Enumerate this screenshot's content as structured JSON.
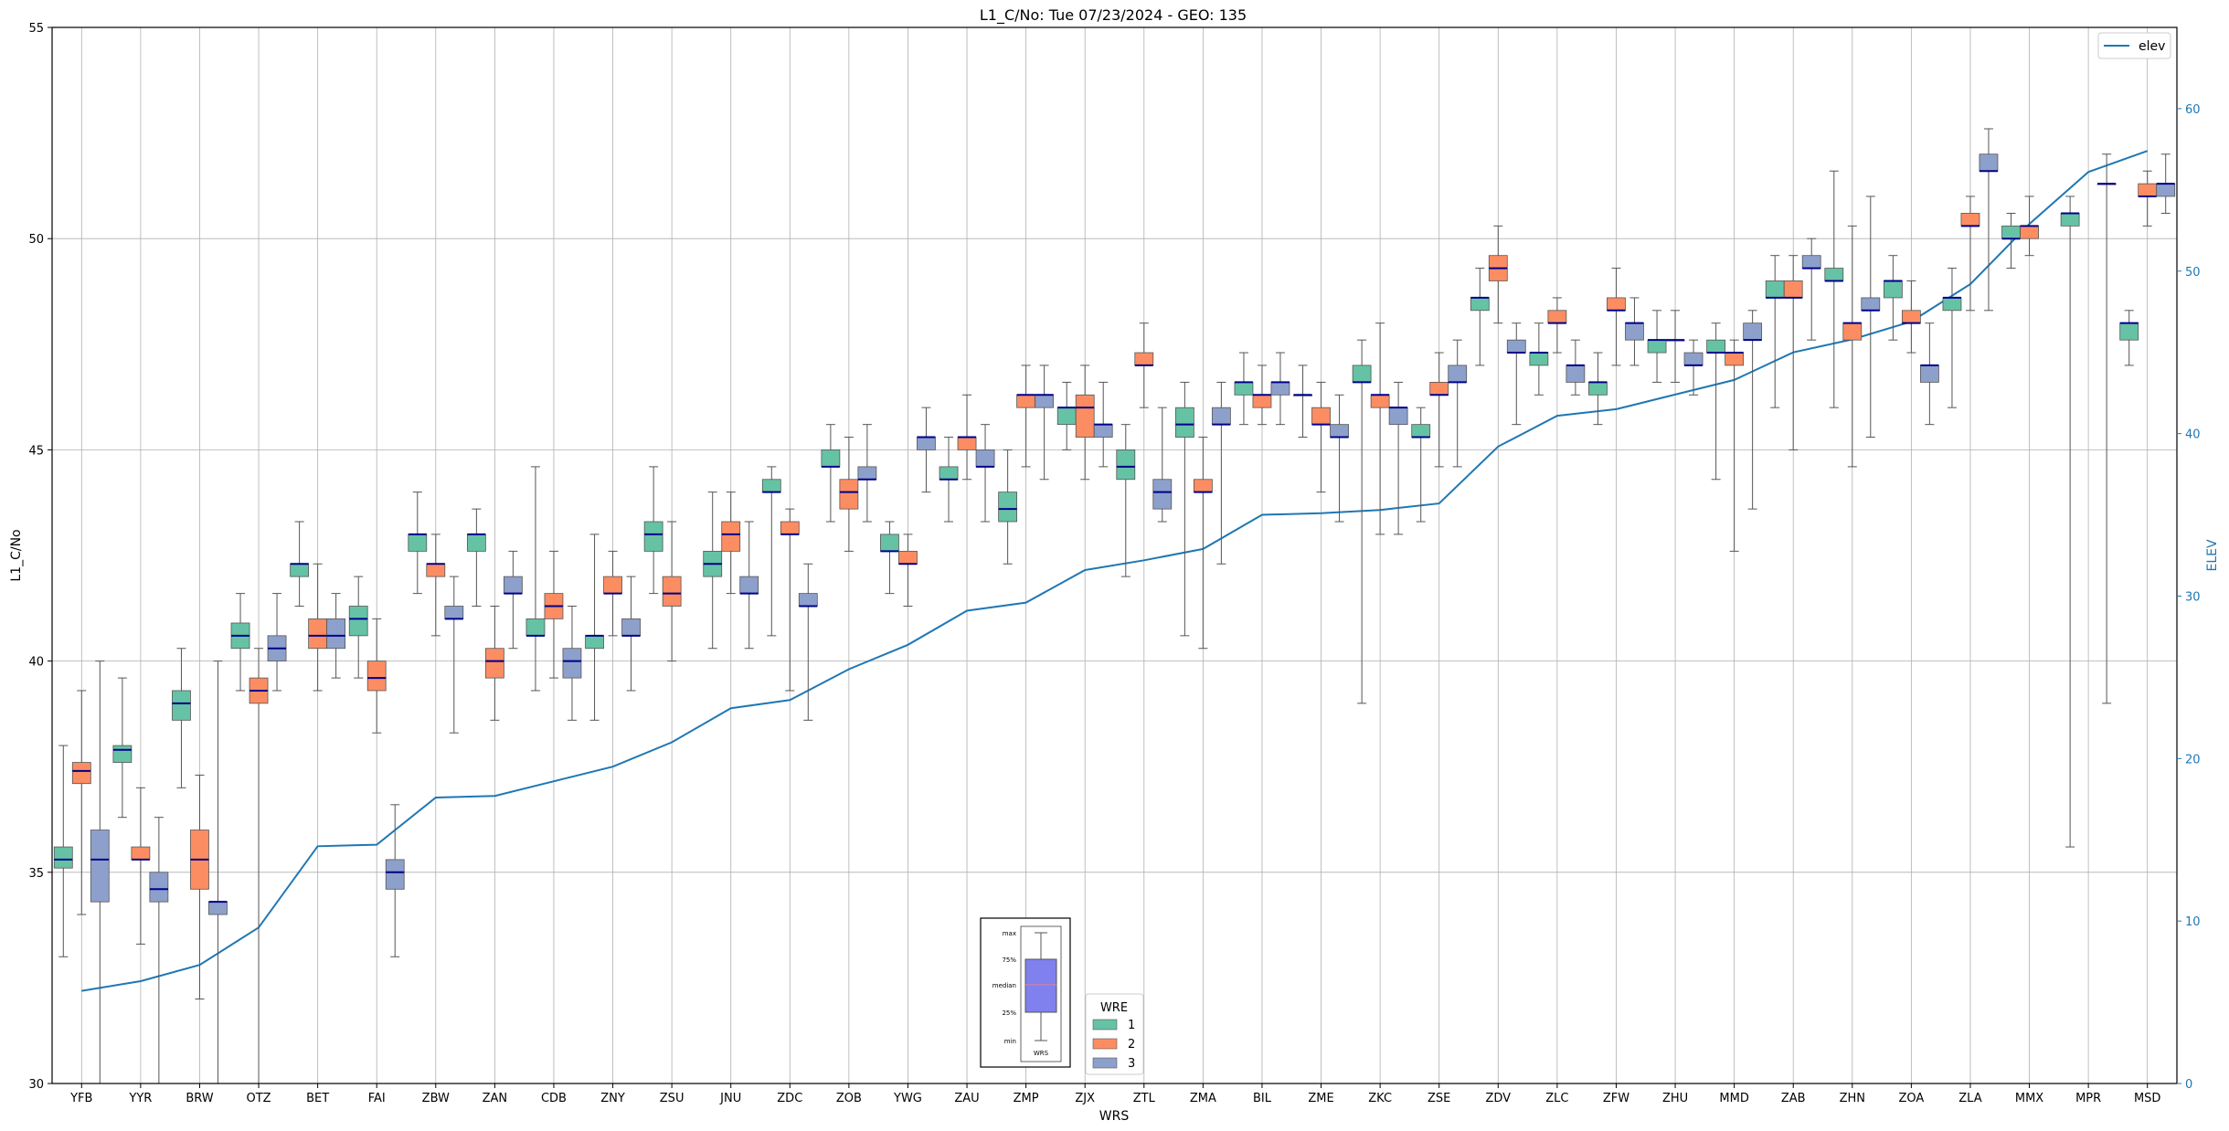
{
  "chart_data": {
    "type": "box",
    "title": "L1_C/No: Tue 07/23/2024 - GEO: 135",
    "xlabel": "WRS",
    "ylabel": "L1_C/No",
    "y2label": "ELEV",
    "ylim": [
      30,
      55
    ],
    "y2lim": [
      0,
      65
    ],
    "yticks": [
      30,
      35,
      40,
      45,
      50,
      55
    ],
    "y2ticks": [
      0,
      10,
      20,
      30,
      40,
      50,
      60
    ],
    "grid": true,
    "categories": [
      "YFB",
      "YYR",
      "BRW",
      "OTZ",
      "BET",
      "FAI",
      "ZBW",
      "ZAN",
      "CDB",
      "ZNY",
      "ZSU",
      "JNU",
      "ZDC",
      "ZOB",
      "YWG",
      "ZAU",
      "ZMP",
      "ZJX",
      "ZTL",
      "ZMA",
      "BIL",
      "ZME",
      "ZKC",
      "ZSE",
      "ZDV",
      "ZLC",
      "ZFW",
      "ZHU",
      "MMD",
      "ZAB",
      "ZHN",
      "ZOA",
      "ZLA",
      "MMX",
      "MPR",
      "MSD"
    ],
    "wre_colors": {
      "1": "#66c2a5",
      "2": "#fc8d62",
      "3": "#8da0cb"
    },
    "median_color": "#00008b",
    "legend": {
      "title": "WRE",
      "entries": [
        "1",
        "2",
        "3"
      ],
      "placement": "bottom-center"
    },
    "elev_legend": {
      "label": "elev",
      "placement": "top-right"
    },
    "elev_color": "#1f77b4",
    "key_labels": {
      "max": "max",
      "q3": "75%",
      "median": "median",
      "q1": "25%",
      "min": "min",
      "xlabel": "WRS"
    },
    "elev": [
      5.7,
      6.3,
      7.3,
      9.6,
      14.6,
      14.7,
      17.6,
      17.7,
      18.6,
      19.5,
      21.0,
      23.1,
      23.6,
      25.5,
      27.0,
      29.1,
      29.6,
      31.6,
      32.2,
      32.9,
      35.0,
      35.1,
      35.3,
      35.7,
      39.2,
      41.1,
      41.5,
      42.4,
      43.3,
      45.0,
      45.8,
      46.9,
      49.2,
      52.9,
      56.1,
      57.4
    ],
    "boxes": [
      {
        "site": "YFB",
        "wre": 1,
        "min": 33.0,
        "q1": 35.1,
        "median": 35.3,
        "q3": 35.6,
        "max": 38.0
      },
      {
        "site": "YFB",
        "wre": 2,
        "min": 34.0,
        "q1": 37.1,
        "median": 37.4,
        "q3": 37.6,
        "max": 39.3
      },
      {
        "site": "YFB",
        "wre": 3,
        "min": 30.0,
        "q1": 34.3,
        "median": 35.3,
        "q3": 36.0,
        "max": 40.0
      },
      {
        "site": "YYR",
        "wre": 1,
        "min": 36.3,
        "q1": 37.6,
        "median": 37.9,
        "q3": 38.0,
        "max": 39.6
      },
      {
        "site": "YYR",
        "wre": 2,
        "min": 33.3,
        "q1": 35.3,
        "median": 35.3,
        "q3": 35.6,
        "max": 37.0
      },
      {
        "site": "YYR",
        "wre": 3,
        "min": 30.0,
        "q1": 34.3,
        "median": 34.6,
        "q3": 35.0,
        "max": 36.3
      },
      {
        "site": "BRW",
        "wre": 1,
        "min": 37.0,
        "q1": 38.6,
        "median": 39.0,
        "q3": 39.3,
        "max": 40.3
      },
      {
        "site": "BRW",
        "wre": 2,
        "min": 32.0,
        "q1": 34.6,
        "median": 35.3,
        "q3": 36.0,
        "max": 37.3
      },
      {
        "site": "BRW",
        "wre": 3,
        "min": 30.0,
        "q1": 34.0,
        "median": 34.3,
        "q3": 34.3,
        "max": 40.0
      },
      {
        "site": "OTZ",
        "wre": 1,
        "min": 39.3,
        "q1": 40.3,
        "median": 40.6,
        "q3": 40.9,
        "max": 41.6
      },
      {
        "site": "OTZ",
        "wre": 2,
        "min": 30.0,
        "q1": 39.0,
        "median": 39.3,
        "q3": 39.6,
        "max": 40.3
      },
      {
        "site": "OTZ",
        "wre": 3,
        "min": 39.3,
        "q1": 40.0,
        "median": 40.3,
        "q3": 40.6,
        "max": 41.6
      },
      {
        "site": "BET",
        "wre": 1,
        "min": 41.3,
        "q1": 42.0,
        "median": 42.3,
        "q3": 42.3,
        "max": 43.3
      },
      {
        "site": "BET",
        "wre": 2,
        "min": 39.3,
        "q1": 40.3,
        "median": 40.6,
        "q3": 41.0,
        "max": 42.3
      },
      {
        "site": "BET",
        "wre": 3,
        "min": 39.6,
        "q1": 40.3,
        "median": 40.6,
        "q3": 41.0,
        "max": 41.6
      },
      {
        "site": "FAI",
        "wre": 1,
        "min": 39.6,
        "q1": 40.6,
        "median": 41.0,
        "q3": 41.3,
        "max": 42.0
      },
      {
        "site": "FAI",
        "wre": 2,
        "min": 38.3,
        "q1": 39.3,
        "median": 39.6,
        "q3": 40.0,
        "max": 41.0
      },
      {
        "site": "FAI",
        "wre": 3,
        "min": 33.0,
        "q1": 34.6,
        "median": 35.0,
        "q3": 35.3,
        "max": 36.6
      },
      {
        "site": "ZBW",
        "wre": 1,
        "min": 41.6,
        "q1": 42.6,
        "median": 43.0,
        "q3": 43.0,
        "max": 44.0
      },
      {
        "site": "ZBW",
        "wre": 2,
        "min": 40.6,
        "q1": 42.0,
        "median": 42.3,
        "q3": 42.3,
        "max": 43.0
      },
      {
        "site": "ZBW",
        "wre": 3,
        "min": 38.3,
        "q1": 41.0,
        "median": 41.0,
        "q3": 41.3,
        "max": 42.0
      },
      {
        "site": "ZAN",
        "wre": 1,
        "min": 41.3,
        "q1": 42.6,
        "median": 43.0,
        "q3": 43.0,
        "max": 43.6
      },
      {
        "site": "ZAN",
        "wre": 2,
        "min": 38.6,
        "q1": 39.6,
        "median": 40.0,
        "q3": 40.3,
        "max": 41.3
      },
      {
        "site": "ZAN",
        "wre": 3,
        "min": 40.3,
        "q1": 41.6,
        "median": 41.6,
        "q3": 42.0,
        "max": 42.6
      },
      {
        "site": "CDB",
        "wre": 1,
        "min": 39.3,
        "q1": 40.6,
        "median": 40.6,
        "q3": 41.0,
        "max": 44.6
      },
      {
        "site": "CDB",
        "wre": 2,
        "min": 39.6,
        "q1": 41.0,
        "median": 41.3,
        "q3": 41.6,
        "max": 42.6
      },
      {
        "site": "CDB",
        "wre": 3,
        "min": 38.6,
        "q1": 39.6,
        "median": 40.0,
        "q3": 40.3,
        "max": 41.3
      },
      {
        "site": "ZNY",
        "wre": 1,
        "min": 38.6,
        "q1": 40.3,
        "median": 40.6,
        "q3": 40.6,
        "max": 43.0
      },
      {
        "site": "ZNY",
        "wre": 2,
        "min": 40.6,
        "q1": 41.6,
        "median": 41.6,
        "q3": 42.0,
        "max": 42.6
      },
      {
        "site": "ZNY",
        "wre": 3,
        "min": 39.3,
        "q1": 40.6,
        "median": 40.6,
        "q3": 41.0,
        "max": 42.0
      },
      {
        "site": "ZSU",
        "wre": 1,
        "min": 41.6,
        "q1": 42.6,
        "median": 43.0,
        "q3": 43.3,
        "max": 44.6
      },
      {
        "site": "ZSU",
        "wre": 2,
        "min": 40.0,
        "q1": 41.3,
        "median": 41.6,
        "q3": 42.0,
        "max": 43.3
      },
      {
        "site": "JNU",
        "wre": 1,
        "min": 40.3,
        "q1": 42.0,
        "median": 42.3,
        "q3": 42.6,
        "max": 44.0
      },
      {
        "site": "JNU",
        "wre": 2,
        "min": 41.6,
        "q1": 42.6,
        "median": 43.0,
        "q3": 43.3,
        "max": 44.0
      },
      {
        "site": "JNU",
        "wre": 3,
        "min": 40.3,
        "q1": 41.6,
        "median": 41.6,
        "q3": 42.0,
        "max": 43.3
      },
      {
        "site": "ZDC",
        "wre": 1,
        "min": 40.6,
        "q1": 44.0,
        "median": 44.0,
        "q3": 44.3,
        "max": 44.6
      },
      {
        "site": "ZDC",
        "wre": 2,
        "min": 39.3,
        "q1": 43.0,
        "median": 43.0,
        "q3": 43.3,
        "max": 43.6
      },
      {
        "site": "ZDC",
        "wre": 3,
        "min": 38.6,
        "q1": 41.3,
        "median": 41.3,
        "q3": 41.6,
        "max": 42.3
      },
      {
        "site": "ZOB",
        "wre": 1,
        "min": 43.3,
        "q1": 44.6,
        "median": 44.6,
        "q3": 45.0,
        "max": 45.6
      },
      {
        "site": "ZOB",
        "wre": 2,
        "min": 42.6,
        "q1": 43.6,
        "median": 44.0,
        "q3": 44.3,
        "max": 45.3
      },
      {
        "site": "ZOB",
        "wre": 3,
        "min": 43.3,
        "q1": 44.3,
        "median": 44.3,
        "q3": 44.6,
        "max": 45.6
      },
      {
        "site": "YWG",
        "wre": 1,
        "min": 41.6,
        "q1": 42.6,
        "median": 42.6,
        "q3": 43.0,
        "max": 43.3
      },
      {
        "site": "YWG",
        "wre": 2,
        "min": 41.3,
        "q1": 42.3,
        "median": 42.3,
        "q3": 42.6,
        "max": 43.0
      },
      {
        "site": "YWG",
        "wre": 3,
        "min": 44.0,
        "q1": 45.0,
        "median": 45.3,
        "q3": 45.3,
        "max": 46.0
      },
      {
        "site": "ZAU",
        "wre": 1,
        "min": 43.3,
        "q1": 44.3,
        "median": 44.3,
        "q3": 44.6,
        "max": 45.3
      },
      {
        "site": "ZAU",
        "wre": 2,
        "min": 44.3,
        "q1": 45.0,
        "median": 45.3,
        "q3": 45.3,
        "max": 46.3
      },
      {
        "site": "ZAU",
        "wre": 3,
        "min": 43.3,
        "q1": 44.6,
        "median": 44.6,
        "q3": 45.0,
        "max": 45.6
      },
      {
        "site": "ZMP",
        "wre": 1,
        "min": 42.3,
        "q1": 43.3,
        "median": 43.6,
        "q3": 44.0,
        "max": 45.0
      },
      {
        "site": "ZMP",
        "wre": 2,
        "min": 44.6,
        "q1": 46.0,
        "median": 46.3,
        "q3": 46.3,
        "max": 47.0
      },
      {
        "site": "ZMP",
        "wre": 3,
        "min": 44.3,
        "q1": 46.0,
        "median": 46.3,
        "q3": 46.3,
        "max": 47.0
      },
      {
        "site": "ZJX",
        "wre": 1,
        "min": 45.0,
        "q1": 45.6,
        "median": 46.0,
        "q3": 46.0,
        "max": 46.6
      },
      {
        "site": "ZJX",
        "wre": 2,
        "min": 44.3,
        "q1": 45.3,
        "median": 46.0,
        "q3": 46.3,
        "max": 47.0
      },
      {
        "site": "ZJX",
        "wre": 3,
        "min": 44.6,
        "q1": 45.3,
        "median": 45.6,
        "q3": 45.6,
        "max": 46.6
      },
      {
        "site": "ZTL",
        "wre": 1,
        "min": 42.0,
        "q1": 44.3,
        "median": 44.6,
        "q3": 45.0,
        "max": 45.6
      },
      {
        "site": "ZTL",
        "wre": 2,
        "min": 46.0,
        "q1": 47.0,
        "median": 47.0,
        "q3": 47.3,
        "max": 48.0
      },
      {
        "site": "ZTL",
        "wre": 3,
        "min": 43.3,
        "q1": 43.6,
        "median": 44.0,
        "q3": 44.3,
        "max": 46.0
      },
      {
        "site": "ZMA",
        "wre": 1,
        "min": 40.6,
        "q1": 45.3,
        "median": 45.6,
        "q3": 46.0,
        "max": 46.6
      },
      {
        "site": "ZMA",
        "wre": 2,
        "min": 40.3,
        "q1": 44.0,
        "median": 44.0,
        "q3": 44.3,
        "max": 45.3
      },
      {
        "site": "ZMA",
        "wre": 3,
        "min": 42.3,
        "q1": 45.6,
        "median": 45.6,
        "q3": 46.0,
        "max": 46.6
      },
      {
        "site": "BIL",
        "wre": 1,
        "min": 45.6,
        "q1": 46.3,
        "median": 46.6,
        "q3": 46.6,
        "max": 47.3
      },
      {
        "site": "BIL",
        "wre": 2,
        "min": 45.6,
        "q1": 46.0,
        "median": 46.3,
        "q3": 46.3,
        "max": 47.0
      },
      {
        "site": "BIL",
        "wre": 3,
        "min": 45.6,
        "q1": 46.3,
        "median": 46.6,
        "q3": 46.6,
        "max": 47.3
      },
      {
        "site": "ZME",
        "wre": 1,
        "min": 45.3,
        "q1": 46.3,
        "median": 46.3,
        "q3": 46.3,
        "max": 47.0
      },
      {
        "site": "ZME",
        "wre": 2,
        "min": 44.0,
        "q1": 45.6,
        "median": 45.6,
        "q3": 46.0,
        "max": 46.6
      },
      {
        "site": "ZME",
        "wre": 3,
        "min": 43.3,
        "q1": 45.3,
        "median": 45.3,
        "q3": 45.6,
        "max": 46.3
      },
      {
        "site": "ZKC",
        "wre": 1,
        "min": 39.0,
        "q1": 46.6,
        "median": 46.6,
        "q3": 47.0,
        "max": 47.6
      },
      {
        "site": "ZKC",
        "wre": 2,
        "min": 43.0,
        "q1": 46.0,
        "median": 46.3,
        "q3": 46.3,
        "max": 48.0
      },
      {
        "site": "ZKC",
        "wre": 3,
        "min": 43.0,
        "q1": 45.6,
        "median": 46.0,
        "q3": 46.0,
        "max": 46.6
      },
      {
        "site": "ZSE",
        "wre": 1,
        "min": 43.3,
        "q1": 45.3,
        "median": 45.3,
        "q3": 45.6,
        "max": 46.0
      },
      {
        "site": "ZSE",
        "wre": 2,
        "min": 44.6,
        "q1": 46.3,
        "median": 46.3,
        "q3": 46.6,
        "max": 47.3
      },
      {
        "site": "ZSE",
        "wre": 3,
        "min": 44.6,
        "q1": 46.6,
        "median": 46.6,
        "q3": 47.0,
        "max": 47.6
      },
      {
        "site": "ZDV",
        "wre": 1,
        "min": 47.0,
        "q1": 48.3,
        "median": 48.6,
        "q3": 48.6,
        "max": 49.3
      },
      {
        "site": "ZDV",
        "wre": 2,
        "min": 48.0,
        "q1": 49.0,
        "median": 49.3,
        "q3": 49.6,
        "max": 50.3
      },
      {
        "site": "ZDV",
        "wre": 3,
        "min": 45.6,
        "q1": 47.3,
        "median": 47.3,
        "q3": 47.6,
        "max": 48.0
      },
      {
        "site": "ZLC",
        "wre": 1,
        "min": 46.3,
        "q1": 47.0,
        "median": 47.3,
        "q3": 47.3,
        "max": 48.0
      },
      {
        "site": "ZLC",
        "wre": 2,
        "min": 47.3,
        "q1": 48.0,
        "median": 48.0,
        "q3": 48.3,
        "max": 48.6
      },
      {
        "site": "ZLC",
        "wre": 3,
        "min": 46.3,
        "q1": 46.6,
        "median": 47.0,
        "q3": 47.0,
        "max": 47.6
      },
      {
        "site": "ZFW",
        "wre": 1,
        "min": 45.6,
        "q1": 46.3,
        "median": 46.6,
        "q3": 46.6,
        "max": 47.3
      },
      {
        "site": "ZFW",
        "wre": 2,
        "min": 47.0,
        "q1": 48.3,
        "median": 48.3,
        "q3": 48.6,
        "max": 49.3
      },
      {
        "site": "ZFW",
        "wre": 3,
        "min": 47.0,
        "q1": 47.6,
        "median": 48.0,
        "q3": 48.0,
        "max": 48.6
      },
      {
        "site": "ZHU",
        "wre": 1,
        "min": 46.6,
        "q1": 47.3,
        "median": 47.6,
        "q3": 47.6,
        "max": 48.3
      },
      {
        "site": "ZHU",
        "wre": 2,
        "min": 46.6,
        "q1": 47.6,
        "median": 47.6,
        "q3": 47.6,
        "max": 48.3
      },
      {
        "site": "ZHU",
        "wre": 3,
        "min": 46.3,
        "q1": 47.0,
        "median": 47.0,
        "q3": 47.3,
        "max": 47.6
      },
      {
        "site": "MMD",
        "wre": 1,
        "min": 44.3,
        "q1": 47.3,
        "median": 47.3,
        "q3": 47.6,
        "max": 48.0
      },
      {
        "site": "MMD",
        "wre": 2,
        "min": 42.6,
        "q1": 47.0,
        "median": 47.3,
        "q3": 47.3,
        "max": 47.6
      },
      {
        "site": "MMD",
        "wre": 3,
        "min": 43.6,
        "q1": 47.6,
        "median": 47.6,
        "q3": 48.0,
        "max": 48.3
      },
      {
        "site": "ZAB",
        "wre": 1,
        "min": 46.0,
        "q1": 48.6,
        "median": 48.6,
        "q3": 49.0,
        "max": 49.6
      },
      {
        "site": "ZAB",
        "wre": 2,
        "min": 45.0,
        "q1": 48.6,
        "median": 48.6,
        "q3": 49.0,
        "max": 49.6
      },
      {
        "site": "ZAB",
        "wre": 3,
        "min": 47.6,
        "q1": 49.3,
        "median": 49.3,
        "q3": 49.6,
        "max": 50.0
      },
      {
        "site": "ZHN",
        "wre": 1,
        "min": 46.0,
        "q1": 49.0,
        "median": 49.0,
        "q3": 49.3,
        "max": 51.6
      },
      {
        "site": "ZHN",
        "wre": 2,
        "min": 44.6,
        "q1": 47.6,
        "median": 48.0,
        "q3": 48.0,
        "max": 50.3
      },
      {
        "site": "ZHN",
        "wre": 3,
        "min": 45.3,
        "q1": 48.3,
        "median": 48.3,
        "q3": 48.6,
        "max": 51.0
      },
      {
        "site": "ZOA",
        "wre": 1,
        "min": 47.6,
        "q1": 48.6,
        "median": 49.0,
        "q3": 49.0,
        "max": 49.6
      },
      {
        "site": "ZOA",
        "wre": 2,
        "min": 47.3,
        "q1": 48.0,
        "median": 48.0,
        "q3": 48.3,
        "max": 49.0
      },
      {
        "site": "ZOA",
        "wre": 3,
        "min": 45.6,
        "q1": 46.6,
        "median": 47.0,
        "q3": 47.0,
        "max": 48.0
      },
      {
        "site": "ZLA",
        "wre": 1,
        "min": 46.0,
        "q1": 48.3,
        "median": 48.6,
        "q3": 48.6,
        "max": 49.3
      },
      {
        "site": "ZLA",
        "wre": 2,
        "min": 48.3,
        "q1": 50.3,
        "median": 50.3,
        "q3": 50.6,
        "max": 51.0
      },
      {
        "site": "ZLA",
        "wre": 3,
        "min": 48.3,
        "q1": 51.6,
        "median": 51.6,
        "q3": 52.0,
        "max": 52.6
      },
      {
        "site": "MMX",
        "wre": 1,
        "min": 49.3,
        "q1": 50.0,
        "median": 50.0,
        "q3": 50.3,
        "max": 50.6
      },
      {
        "site": "MMX",
        "wre": 2,
        "min": 49.6,
        "q1": 50.0,
        "median": 50.3,
        "q3": 50.3,
        "max": 51.0
      },
      {
        "site": "MPR",
        "wre": 1,
        "min": 35.6,
        "q1": 50.3,
        "median": 50.6,
        "q3": 50.6,
        "max": 51.0
      },
      {
        "site": "MPR",
        "wre": 3,
        "min": 39.0,
        "q1": 51.3,
        "median": 51.3,
        "q3": 51.3,
        "max": 52.0
      },
      {
        "site": "MSD",
        "wre": 1,
        "min": 47.0,
        "q1": 47.6,
        "median": 48.0,
        "q3": 48.0,
        "max": 48.3
      },
      {
        "site": "MSD",
        "wre": 2,
        "min": 50.3,
        "q1": 51.0,
        "median": 51.0,
        "q3": 51.3,
        "max": 51.6
      },
      {
        "site": "MSD",
        "wre": 3,
        "min": 50.6,
        "q1": 51.0,
        "median": 51.3,
        "q3": 51.3,
        "max": 52.0
      }
    ]
  }
}
